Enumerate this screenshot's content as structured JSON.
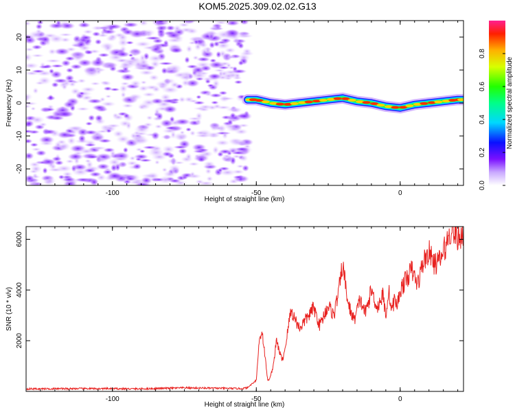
{
  "title": "KOM5.2025.309.02.02.G13",
  "chart_data": [
    {
      "type": "heatmap",
      "title": "",
      "xlabel": "Height of straight line (km)",
      "ylabel": "Frequency (Hz)",
      "xlim": [
        -130,
        22
      ],
      "ylim": [
        -25,
        25
      ],
      "x_ticks": [
        -100,
        -50,
        0
      ],
      "y_ticks": [
        -20,
        -10,
        0,
        10,
        20
      ],
      "noise_region_x": [
        -130,
        -53
      ],
      "signal_track": {
        "x": [
          -53,
          -50,
          -45,
          -40,
          -35,
          -30,
          -25,
          -20,
          -15,
          -10,
          -5,
          0,
          5,
          10,
          15,
          20,
          22
        ],
        "y": [
          1,
          1,
          0,
          -0.5,
          0,
          0.5,
          1,
          1.5,
          0.5,
          0,
          -1,
          -1.5,
          -0.5,
          0,
          0.5,
          1,
          1
        ]
      },
      "colorbar": {
        "label": "Normalized spectral amplitude",
        "range": [
          0,
          1
        ],
        "ticks": [
          "0.0",
          "0.2",
          "0.4",
          "0.6",
          "0.8"
        ],
        "colormap": "rainbow"
      }
    },
    {
      "type": "line",
      "title": "",
      "xlabel": "Height of straight line (km)",
      "ylabel": "SNR (10 * v/v)",
      "xlim": [
        -130,
        22
      ],
      "ylim": [
        0,
        6500
      ],
      "x_ticks": [
        -100,
        -50,
        0
      ],
      "y_ticks": [
        2000,
        4000,
        6000
      ],
      "series": [
        {
          "name": "SNR",
          "color": "#e8201e",
          "x": [
            -130,
            -110,
            -90,
            -75,
            -60,
            -55,
            -53,
            -50,
            -49,
            -48,
            -46,
            -45,
            -44,
            -43,
            -42,
            -41,
            -40,
            -38,
            -35,
            -33,
            -30,
            -28,
            -25,
            -23,
            -21,
            -20,
            -18,
            -16,
            -14,
            -12,
            -10,
            -8,
            -6,
            -5,
            -4,
            -3,
            -2,
            -1,
            0,
            2,
            4,
            6,
            8,
            10,
            12,
            14,
            16,
            18,
            20,
            22
          ],
          "values": [
            100,
            110,
            100,
            140,
            120,
            110,
            150,
            450,
            2000,
            2400,
            400,
            600,
            1100,
            2000,
            1600,
            1200,
            1700,
            3200,
            2500,
            2800,
            3300,
            2600,
            3400,
            3000,
            4200,
            5000,
            3400,
            2800,
            3600,
            3100,
            4000,
            3300,
            3800,
            3000,
            4000,
            3200,
            3600,
            3400,
            4000,
            4400,
            4800,
            4200,
            5100,
            5500,
            5000,
            5200,
            5800,
            6500,
            6000,
            6300
          ]
        }
      ]
    }
  ]
}
